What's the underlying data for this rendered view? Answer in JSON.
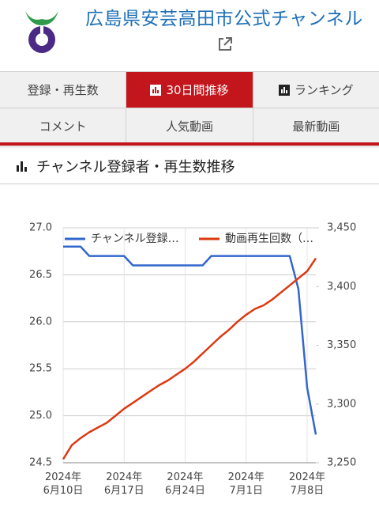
{
  "header": {
    "title": "広島県安芸高田市公式チャンネル"
  },
  "tabs": [
    [
      "登録・再生数",
      "30日間推移",
      "ランキング"
    ],
    [
      "コメント",
      "人気動画",
      "最新動画"
    ]
  ],
  "selected_tab": "30日間推移",
  "section_title": "チャンネル登録者・再生数推移",
  "chart_data": {
    "type": "line",
    "legend": "top",
    "grid": true,
    "categories": [
      "2024年6月10日",
      null,
      null,
      null,
      null,
      null,
      null,
      "2024年6月17日",
      null,
      null,
      null,
      null,
      null,
      null,
      "2024年6月24日",
      null,
      null,
      null,
      null,
      null,
      null,
      "2024年7月1日",
      null,
      null,
      null,
      null,
      null,
      null,
      "2024年7月8日",
      null
    ],
    "series": [
      {
        "name": "チャンネル登録…",
        "color": "#3366cc",
        "values": [
          26.8,
          26.8,
          26.8,
          26.7,
          26.7,
          26.7,
          26.7,
          26.7,
          26.6,
          26.6,
          26.6,
          26.6,
          26.6,
          26.6,
          26.6,
          26.6,
          26.6,
          26.7,
          26.7,
          26.7,
          26.7,
          26.7,
          26.7,
          26.7,
          26.7,
          26.7,
          26.7,
          26.35,
          25.3,
          24.8
        ]
      },
      {
        "name": "動画再生回数（…",
        "color": "#dc3912",
        "axis": "y2",
        "values": [
          3253,
          3265,
          3271,
          3276,
          3280,
          3284,
          3290,
          3296,
          3301,
          3306,
          3311,
          3316,
          3320,
          3325,
          3330,
          3336,
          3343,
          3350,
          3357,
          3363,
          3370,
          3376,
          3381,
          3384,
          3389,
          3395,
          3401,
          3407,
          3413,
          3424
        ]
      }
    ],
    "ylim": [
      24.5,
      27.0
    ],
    "yticks": [
      {
        "value": 27.0,
        "label": "27.0"
      },
      26.5,
      {
        "value": 26.0,
        "label": "26.0"
      },
      25.5,
      {
        "value": 25.0,
        "label": "25.0"
      },
      24.5
    ],
    "y2lim": [
      3250,
      3450
    ],
    "y2ticks": [
      {
        "value": 3450,
        "label": "3,450"
      },
      {
        "value": 3400,
        "label": "3,400"
      },
      {
        "value": 3350,
        "label": "3,350"
      },
      {
        "value": 3300,
        "label": "3,300"
      },
      {
        "value": 3250,
        "label": "3,250"
      }
    ]
  }
}
